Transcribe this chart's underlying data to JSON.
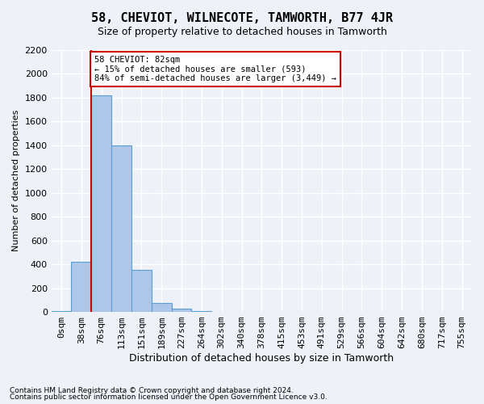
{
  "title": "58, CHEVIOT, WILNECOTE, TAMWORTH, B77 4JR",
  "subtitle": "Size of property relative to detached houses in Tamworth",
  "xlabel": "Distribution of detached houses by size in Tamworth",
  "ylabel": "Number of detached properties",
  "bar_values": [
    5,
    420,
    1820,
    1400,
    350,
    75,
    25,
    5,
    0,
    0,
    0,
    0,
    0,
    0,
    0,
    0,
    0,
    0,
    0,
    0,
    0
  ],
  "bar_labels": [
    "0sqm",
    "38sqm",
    "76sqm",
    "113sqm",
    "151sqm",
    "189sqm",
    "227sqm",
    "264sqm",
    "302sqm",
    "340sqm",
    "378sqm",
    "415sqm",
    "453sqm",
    "491sqm",
    "529sqm",
    "566sqm",
    "604sqm",
    "642sqm",
    "680sqm",
    "717sqm",
    "755sqm"
  ],
  "bar_color": "#aec6e8",
  "bar_edge_color": "#5a9fd4",
  "ylim": [
    0,
    2200
  ],
  "yticks": [
    0,
    200,
    400,
    600,
    800,
    1000,
    1200,
    1400,
    1600,
    1800,
    2000,
    2200
  ],
  "red_line_x": 2,
  "annotation_text": "58 CHEVIOT: 82sqm\n← 15% of detached houses are smaller (593)\n84% of semi-detached houses are larger (3,449) →",
  "annotation_box_color": "#ffffff",
  "annotation_box_edge": "#cc0000",
  "footer1": "Contains HM Land Registry data © Crown copyright and database right 2024.",
  "footer2": "Contains public sector information licensed under the Open Government Licence v3.0.",
  "background_color": "#eef2f8",
  "grid_color": "#ffffff"
}
